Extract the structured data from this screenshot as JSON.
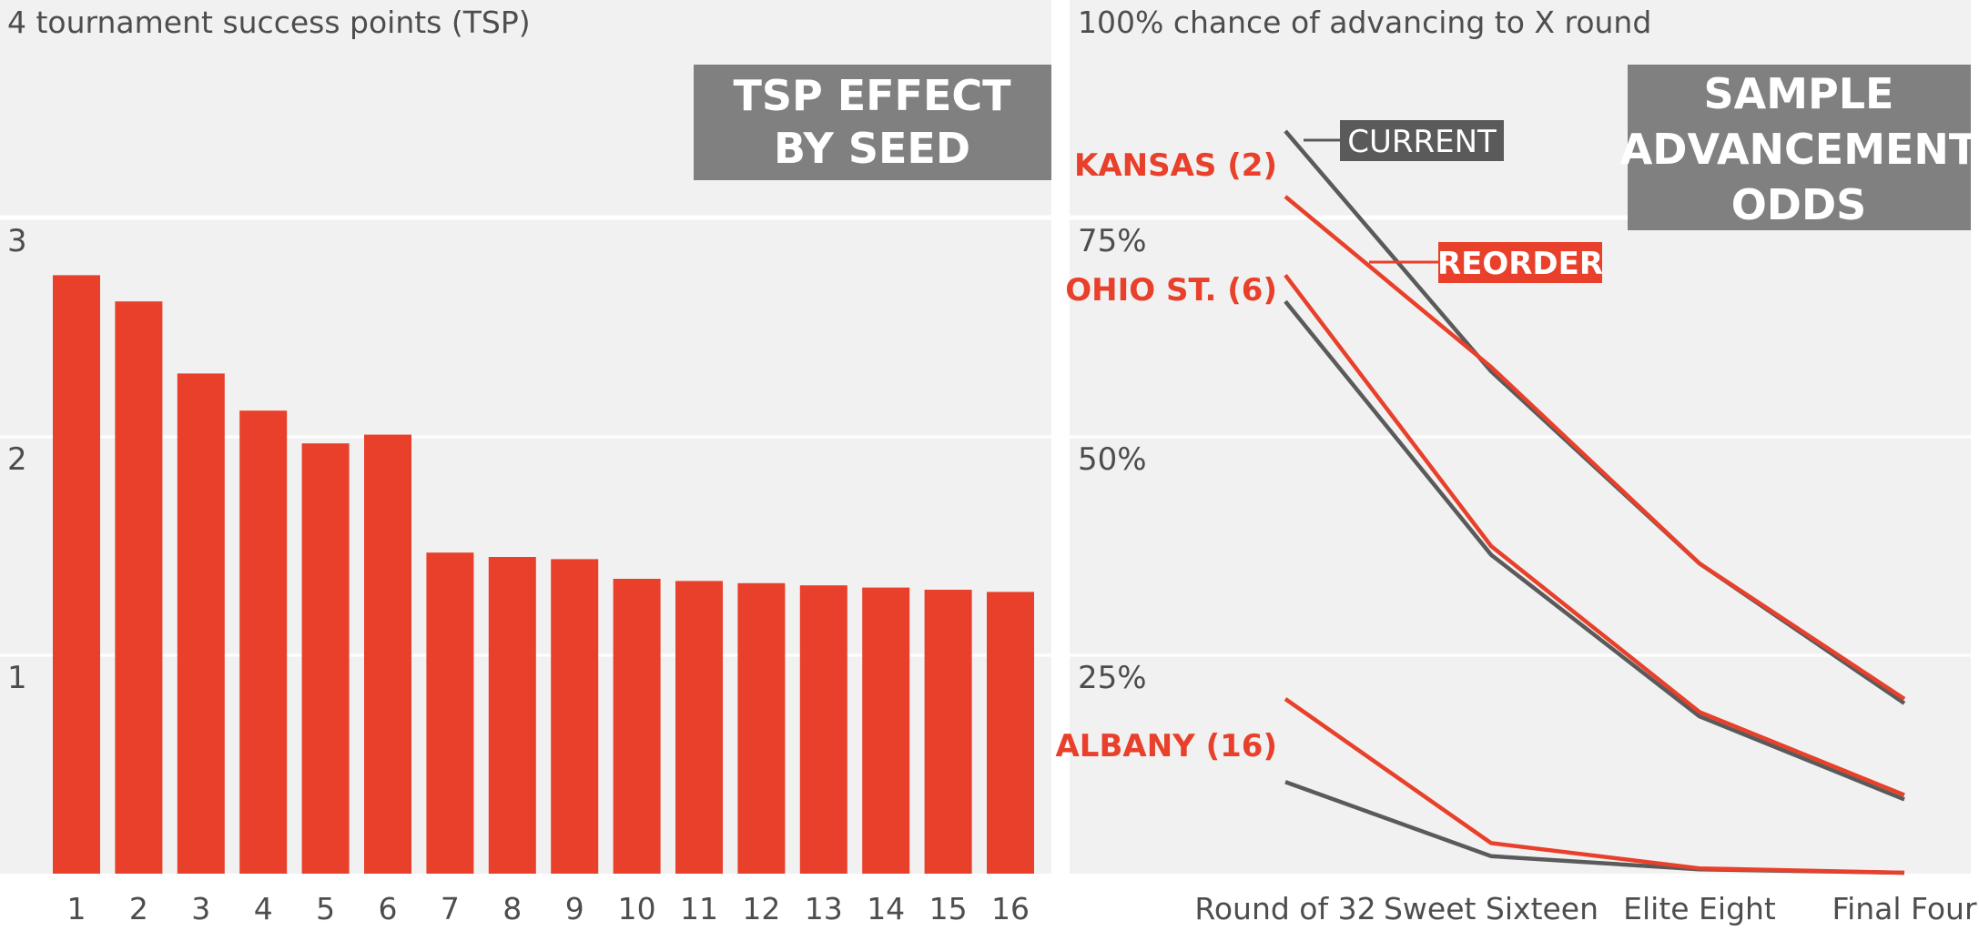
{
  "chart_data": [
    {
      "type": "bar",
      "title": "TSP EFFECT BY SEED",
      "top_ytick": "4 tournament success points (TSP)",
      "categories": [
        "1",
        "2",
        "3",
        "4",
        "5",
        "6",
        "7",
        "8",
        "9",
        "10",
        "11",
        "12",
        "13",
        "14",
        "15",
        "16"
      ],
      "values": [
        2.74,
        2.62,
        2.29,
        2.12,
        1.97,
        2.01,
        1.47,
        1.45,
        1.44,
        1.35,
        1.34,
        1.33,
        1.32,
        1.31,
        1.3,
        1.29
      ],
      "ylim": [
        0,
        4
      ],
      "yticks": [
        {
          "value": 1,
          "label": "1"
        },
        {
          "value": 2,
          "label": "2"
        },
        {
          "value": 3,
          "label": "3"
        }
      ],
      "bar_color": "#e8402a",
      "grid": true
    },
    {
      "type": "line",
      "title": "SAMPLE ADVANCEMENT ODDS",
      "title_lines": [
        "SAMPLE",
        "ADVANCEMENT",
        "ODDS"
      ],
      "top_ytick": "100% chance of advancing to X round",
      "categories": [
        "Round of 32",
        "Sweet Sixteen",
        "Elite Eight",
        "Final Four"
      ],
      "ylim": [
        0,
        100
      ],
      "yticks": [
        {
          "value": 25,
          "label": "25%"
        },
        {
          "value": 50,
          "label": "50%"
        },
        {
          "value": 75,
          "label": "75%"
        }
      ],
      "series": [
        {
          "team": "KANSAS (2)",
          "method": "CURRENT",
          "color": "#5a5a5a",
          "values": [
            85,
            57.5,
            35.5,
            19.5
          ]
        },
        {
          "team": "KANSAS (2)",
          "method": "REORDER",
          "color": "#e8402a",
          "values": [
            77.5,
            58,
            35.5,
            20
          ]
        },
        {
          "team": "OHIO ST. (6)",
          "method": "CURRENT",
          "color": "#5a5a5a",
          "values": [
            65.5,
            36.5,
            18,
            8.5
          ]
        },
        {
          "team": "OHIO ST. (6)",
          "method": "REORDER",
          "color": "#e8402a",
          "values": [
            68.5,
            37.5,
            18.5,
            9
          ]
        },
        {
          "team": "ALBANY (16)",
          "method": "CURRENT",
          "color": "#5a5a5a",
          "values": [
            10.5,
            2,
            0.5,
            0.1
          ]
        },
        {
          "team": "ALBANY (16)",
          "method": "REORDER",
          "color": "#e8402a",
          "values": [
            20,
            3.5,
            0.6,
            0.1
          ]
        }
      ],
      "team_labels": [
        "KANSAS (2)",
        "OHIO ST. (6)",
        "ALBANY (16)"
      ],
      "legend": [
        "CURRENT",
        "REORDER"
      ],
      "grid": true
    }
  ],
  "colors": {
    "accent": "#e8402a",
    "dark_line": "#5a5a5a",
    "title_box": "#808080",
    "panel_bg": "#f1f1f1"
  }
}
